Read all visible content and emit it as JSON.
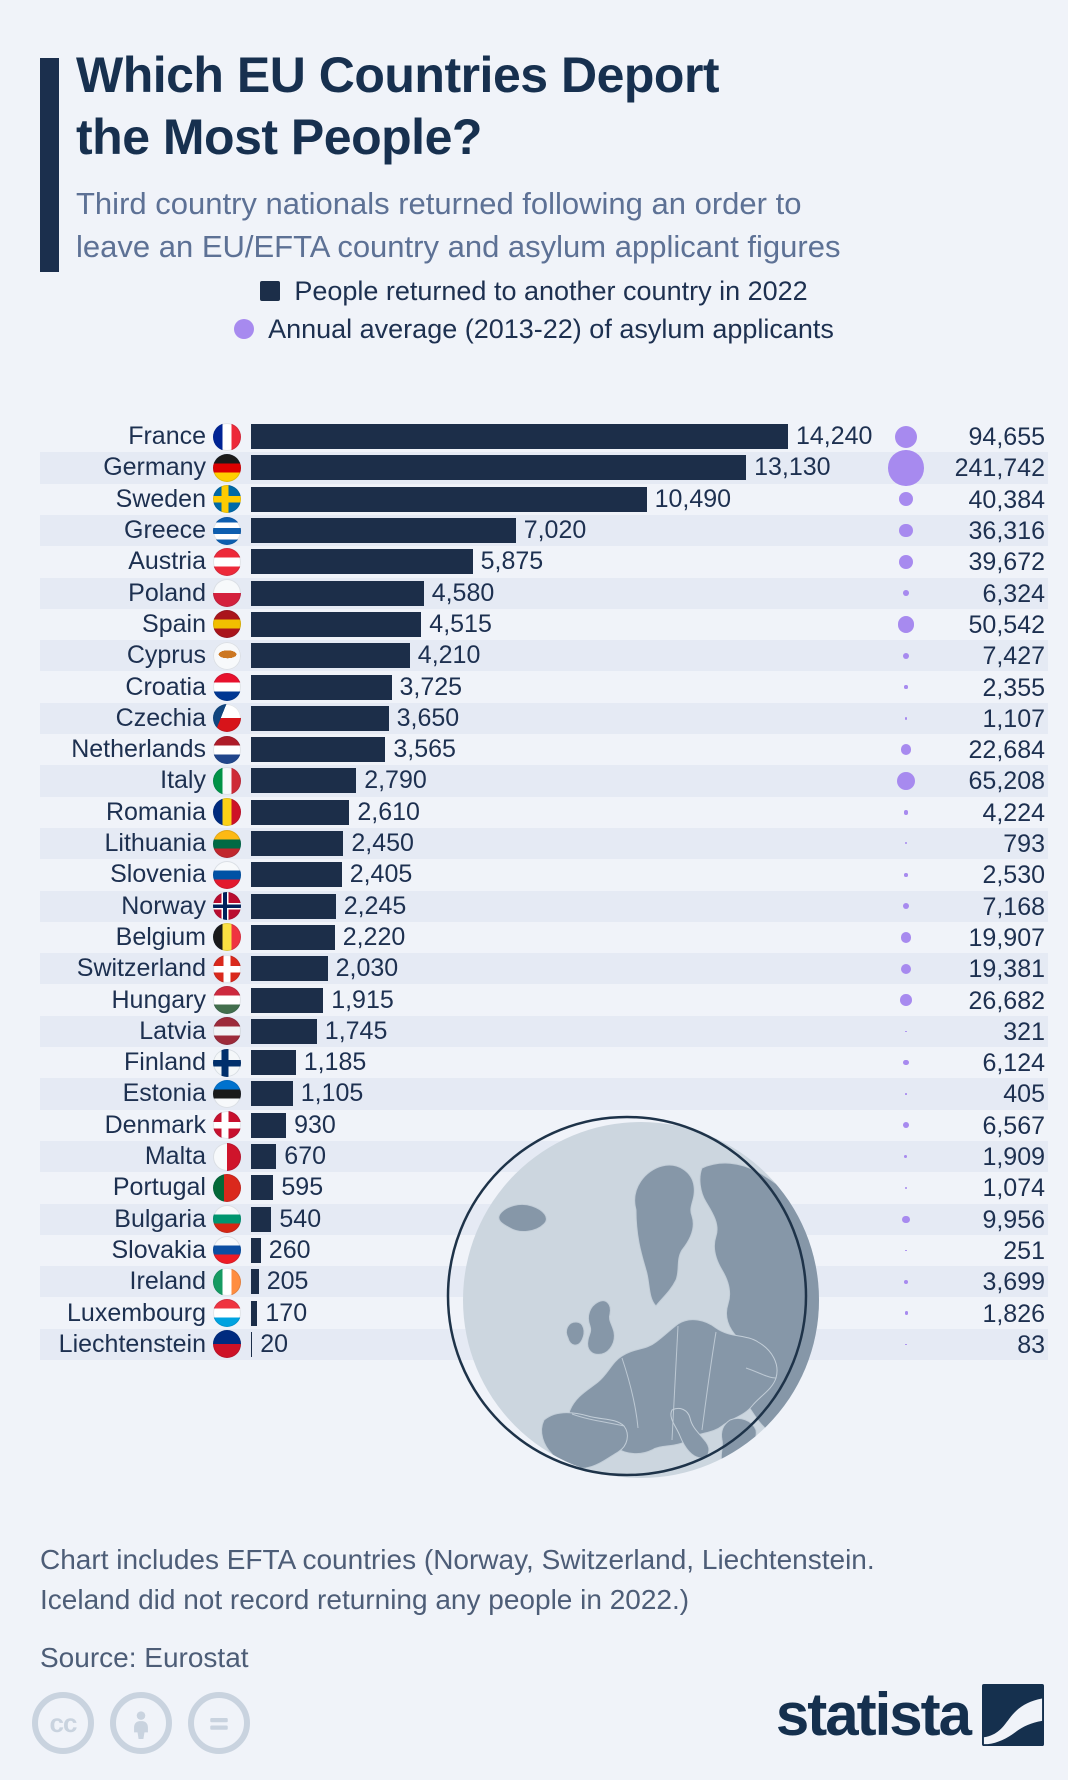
{
  "header": {
    "title_line1": "Which EU Countries Deport",
    "title_line2": "the Most People?",
    "subtitle_line1": "Third country nationals returned following an order to",
    "subtitle_line2": "leave an EU/EFTA country and asylum applicant figures"
  },
  "legend": [
    {
      "marker": "square",
      "color": "#1c2e49",
      "label": "People returned to another country in 2022"
    },
    {
      "marker": "circle",
      "color": "#a78aef",
      "label": "Annual average (2013-22) of asylum applicants"
    }
  ],
  "colors": {
    "bar": "#1c2e49",
    "dot": "#a78aef",
    "stripe": "#e5eaf4",
    "background": "#f0f3f9",
    "title": "#17304f",
    "subtitle": "#5d7195",
    "footnote": "#4d5d77",
    "cc_gray": "#c9d3df",
    "globe_sea": "#ccd6df",
    "globe_land": "#8697a8",
    "globe_outline": "#1e3349"
  },
  "chart_data": {
    "type": "bar",
    "orientation": "horizontal",
    "title": "Which EU Countries Deport the Most People?",
    "subtitle": "Third country nationals returned following an order to leave an EU/EFTA country and asylum applicant figures",
    "categories": [
      "France",
      "Germany",
      "Sweden",
      "Greece",
      "Austria",
      "Poland",
      "Spain",
      "Cyprus",
      "Croatia",
      "Czechia",
      "Netherlands",
      "Italy",
      "Romania",
      "Lithuania",
      "Slovenia",
      "Norway",
      "Belgium",
      "Switzerland",
      "Hungary",
      "Latvia",
      "Finland",
      "Estonia",
      "Denmark",
      "Malta",
      "Portugal",
      "Bulgaria",
      "Slovakia",
      "Ireland",
      "Luxembourg",
      "Liechtenstein"
    ],
    "series": [
      {
        "name": "People returned to another country in 2022",
        "values": [
          14240,
          13130,
          10490,
          7020,
          5875,
          4580,
          4515,
          4210,
          3725,
          3650,
          3565,
          2790,
          2610,
          2450,
          2405,
          2245,
          2220,
          2030,
          1915,
          1745,
          1185,
          1105,
          930,
          670,
          595,
          540,
          260,
          205,
          170,
          20
        ]
      },
      {
        "name": "Annual average (2013-22) of asylum applicants",
        "values": [
          94655,
          241742,
          40384,
          36316,
          39672,
          6324,
          50542,
          7427,
          2355,
          1107,
          22684,
          65208,
          4224,
          793,
          2530,
          7168,
          19907,
          19381,
          26682,
          321,
          6124,
          405,
          6567,
          1909,
          1074,
          9956,
          251,
          3699,
          1826,
          83
        ]
      }
    ],
    "xlim": [
      0,
      14240
    ],
    "legend_position": "top",
    "grid": false
  },
  "rows": [
    {
      "country": "France",
      "returned_label": "14,240",
      "returned": 14240,
      "asylum_label": "94,655",
      "asylum": 94655,
      "flag": {
        "t": "v",
        "c": [
          "#002395",
          "#ffffff",
          "#ed2939"
        ]
      }
    },
    {
      "country": "Germany",
      "returned_label": "13,130",
      "returned": 13130,
      "asylum_label": "241,742",
      "asylum": 241742,
      "flag": {
        "t": "h",
        "c": [
          "#1a1a1a",
          "#dd0000",
          "#ffce00"
        ]
      }
    },
    {
      "country": "Sweden",
      "returned_label": "10,490",
      "returned": 10490,
      "asylum_label": "40,384",
      "asylum": 40384,
      "flag": {
        "t": "x",
        "bg": "#006aa7",
        "cross": "#fecc02"
      }
    },
    {
      "country": "Greece",
      "returned_label": "7,020",
      "returned": 7020,
      "asylum_label": "36,316",
      "asylum": 36316,
      "flag": {
        "t": "h",
        "c": [
          "#0d5eaf",
          "#ffffff",
          "#0d5eaf",
          "#ffffff",
          "#0d5eaf"
        ]
      }
    },
    {
      "country": "Austria",
      "returned_label": "5,875",
      "returned": 5875,
      "asylum_label": "39,672",
      "asylum": 39672,
      "flag": {
        "t": "h",
        "c": [
          "#ed2939",
          "#ffffff",
          "#ed2939"
        ]
      }
    },
    {
      "country": "Poland",
      "returned_label": "4,580",
      "returned": 4580,
      "asylum_label": "6,324",
      "asylum": 6324,
      "flag": {
        "t": "h",
        "c": [
          "#f7f9fb",
          "#d4213d"
        ]
      }
    },
    {
      "country": "Spain",
      "returned_label": "4,515",
      "returned": 4515,
      "asylum_label": "50,542",
      "asylum": 50542,
      "flag": {
        "t": "h",
        "c": [
          "#aa151b",
          "#f1bf00",
          "#aa151b"
        ]
      }
    },
    {
      "country": "Cyprus",
      "returned_label": "4,210",
      "returned": 4210,
      "asylum_label": "7,427",
      "asylum": 7427,
      "flag": {
        "t": "cy"
      }
    },
    {
      "country": "Croatia",
      "returned_label": "3,725",
      "returned": 3725,
      "asylum_label": "2,355",
      "asylum": 2355,
      "flag": {
        "t": "h",
        "c": [
          "#e8112d",
          "#ffffff",
          "#013893"
        ]
      }
    },
    {
      "country": "Czechia",
      "returned_label": "3,650",
      "returned": 3650,
      "asylum_label": "1,107",
      "asylum": 1107,
      "flag": {
        "t": "cz"
      }
    },
    {
      "country": "Netherlands",
      "returned_label": "3,565",
      "returned": 3565,
      "asylum_label": "22,684",
      "asylum": 22684,
      "flag": {
        "t": "h",
        "c": [
          "#ae1c28",
          "#ffffff",
          "#21468b"
        ]
      }
    },
    {
      "country": "Italy",
      "returned_label": "2,790",
      "returned": 2790,
      "asylum_label": "65,208",
      "asylum": 65208,
      "flag": {
        "t": "v",
        "c": [
          "#009246",
          "#f6f9fb",
          "#ce2b37"
        ]
      }
    },
    {
      "country": "Romania",
      "returned_label": "2,610",
      "returned": 2610,
      "asylum_label": "4,224",
      "asylum": 4224,
      "flag": {
        "t": "v",
        "c": [
          "#002b7f",
          "#fcd116",
          "#ce1126"
        ]
      }
    },
    {
      "country": "Lithuania",
      "returned_label": "2,450",
      "returned": 2450,
      "asylum_label": "793",
      "asylum": 793,
      "flag": {
        "t": "h",
        "c": [
          "#fdb913",
          "#006a44",
          "#c1272d"
        ]
      }
    },
    {
      "country": "Slovenia",
      "returned_label": "2,405",
      "returned": 2405,
      "asylum_label": "2,530",
      "asylum": 2530,
      "flag": {
        "t": "h",
        "c": [
          "#f7f9fb",
          "#0052a5",
          "#e3192d"
        ]
      }
    },
    {
      "country": "Norway",
      "returned_label": "2,245",
      "returned": 2245,
      "asylum_label": "7,168",
      "asylum": 7168,
      "flag": {
        "t": "x",
        "bg": "#ba0c2f",
        "cross": "#ffffff",
        "inner": "#00205b"
      }
    },
    {
      "country": "Belgium",
      "returned_label": "2,220",
      "returned": 2220,
      "asylum_label": "19,907",
      "asylum": 19907,
      "flag": {
        "t": "v",
        "c": [
          "#1a1a1a",
          "#fae042",
          "#ef3340"
        ]
      }
    },
    {
      "country": "Switzerland",
      "returned_label": "2,030",
      "returned": 2030,
      "asylum_label": "19,381",
      "asylum": 19381,
      "flag": {
        "t": "x",
        "bg": "#da291c",
        "cross": "#ffffff",
        "center": true
      }
    },
    {
      "country": "Hungary",
      "returned_label": "1,915",
      "returned": 1915,
      "asylum_label": "26,682",
      "asylum": 26682,
      "flag": {
        "t": "h",
        "c": [
          "#cd2a3e",
          "#ffffff",
          "#436f4d"
        ]
      }
    },
    {
      "country": "Latvia",
      "returned_label": "1,745",
      "returned": 1745,
      "asylum_label": "321",
      "asylum": 321,
      "flag": {
        "t": "h",
        "c": [
          "#9d2b3a",
          "#f2f4f6",
          "#9d2b3a"
        ]
      }
    },
    {
      "country": "Finland",
      "returned_label": "1,185",
      "returned": 1185,
      "asylum_label": "6,124",
      "asylum": 6124,
      "flag": {
        "t": "x",
        "bg": "#f4f7f9",
        "cross": "#002f6c"
      }
    },
    {
      "country": "Estonia",
      "returned_label": "1,105",
      "returned": 1105,
      "asylum_label": "405",
      "asylum": 405,
      "flag": {
        "t": "h",
        "c": [
          "#0072ce",
          "#1a1a1a",
          "#f7f9fb"
        ]
      }
    },
    {
      "country": "Denmark",
      "returned_label": "930",
      "returned": 930,
      "asylum_label": "6,567",
      "asylum": 6567,
      "flag": {
        "t": "x",
        "bg": "#c8102e",
        "cross": "#ffffff"
      }
    },
    {
      "country": "Malta",
      "returned_label": "670",
      "returned": 670,
      "asylum_label": "1,909",
      "asylum": 1909,
      "flag": {
        "t": "v",
        "c": [
          "#f7f9fb",
          "#cf142b"
        ]
      }
    },
    {
      "country": "Portugal",
      "returned_label": "595",
      "returned": 595,
      "asylum_label": "1,074",
      "asylum": 1074,
      "flag": {
        "t": "v",
        "c": [
          "#046a38",
          "#046a38",
          "#da291c",
          "#da291c",
          "#da291c"
        ]
      }
    },
    {
      "country": "Bulgaria",
      "returned_label": "540",
      "returned": 540,
      "asylum_label": "9,956",
      "asylum": 9956,
      "flag": {
        "t": "h",
        "c": [
          "#f7f9fb",
          "#00966e",
          "#d62612"
        ]
      }
    },
    {
      "country": "Slovakia",
      "returned_label": "260",
      "returned": 260,
      "asylum_label": "251",
      "asylum": 251,
      "flag": {
        "t": "h",
        "c": [
          "#f7f9fb",
          "#0b4ea2",
          "#ee1c25"
        ]
      }
    },
    {
      "country": "Ireland",
      "returned_label": "205",
      "returned": 205,
      "asylum_label": "3,699",
      "asylum": 3699,
      "flag": {
        "t": "v",
        "c": [
          "#169b62",
          "#ffffff",
          "#ff8d3f"
        ]
      }
    },
    {
      "country": "Luxembourg",
      "returned_label": "170",
      "returned": 170,
      "asylum_label": "1,826",
      "asylum": 1826,
      "flag": {
        "t": "h",
        "c": [
          "#ef3340",
          "#ffffff",
          "#00a3e0"
        ]
      }
    },
    {
      "country": "Liechtenstein",
      "returned_label": "20",
      "returned": 20,
      "asylum_label": "83",
      "asylum": 83,
      "flag": {
        "t": "h",
        "c": [
          "#002b7f",
          "#ce1126"
        ]
      }
    }
  ],
  "footer": {
    "note": "Chart includes EFTA countries (Norway, Switzerland, Liechtenstein. Iceland did not record returning any people in 2022.)",
    "source": "Source: Eurostat",
    "brand": "statista",
    "cc_labels": {
      "cc": "cc",
      "attribution": "person",
      "equal": "equal"
    }
  }
}
